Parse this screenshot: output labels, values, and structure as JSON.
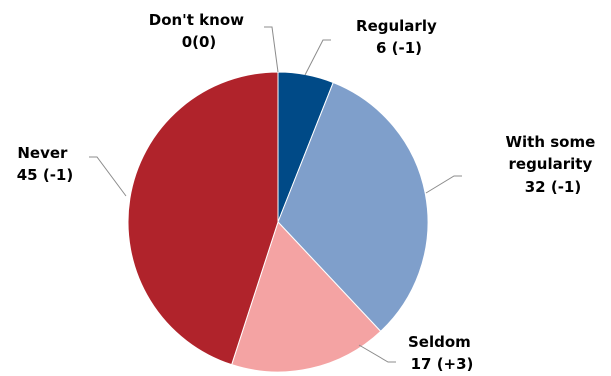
{
  "chart_data": {
    "type": "pie",
    "slices": [
      {
        "label": "Regularly",
        "value": 6,
        "value_text": "6 (-1)",
        "color": "#004a87"
      },
      {
        "label": "With some regularity",
        "value": 32,
        "value_text": "32 (-1)",
        "color": "#7f9fcb"
      },
      {
        "label": "Seldom",
        "value": 17,
        "value_text": "17 (+3)",
        "color": "#f4a3a3"
      },
      {
        "label": "Never",
        "value": 45,
        "value_text": "45 (-1)",
        "color": "#b0232b"
      },
      {
        "label": "Don't know",
        "value": 0,
        "value_text": "0(0)",
        "color": "#d9d9d9"
      }
    ],
    "start_angle": "12 o'clock",
    "direction": "clockwise",
    "legend": "none"
  },
  "labels": {
    "regularly": {
      "line1": "Regularly",
      "line2": "6 (-1)"
    },
    "some": {
      "line1": "With some",
      "line2": "regularity",
      "line3": "32 (-1)"
    },
    "seldom": {
      "line1": "Seldom",
      "line2": "17 (+3)"
    },
    "never": {
      "line1": "Never",
      "line2": "45 (-1)"
    },
    "dontknow": {
      "line1": "Don't know",
      "line2": "0(0)"
    }
  }
}
